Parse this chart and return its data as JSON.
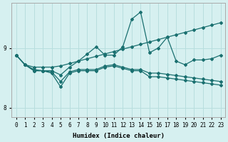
{
  "xlabel": "Humidex (Indice chaleur)",
  "bg_color": "#d6f0f0",
  "grid_color": "#b8dede",
  "line_color": "#1a7070",
  "xlim": [
    -0.5,
    23.5
  ],
  "ylim": [
    7.85,
    9.75
  ],
  "yticks": [
    8,
    9
  ],
  "xticks": [
    0,
    1,
    2,
    3,
    4,
    5,
    6,
    7,
    8,
    9,
    10,
    11,
    12,
    13,
    14,
    15,
    16,
    17,
    18,
    19,
    20,
    21,
    22,
    23
  ],
  "l1": [
    8.88,
    8.72,
    8.68,
    8.68,
    8.68,
    8.7,
    8.74,
    8.78,
    8.82,
    8.86,
    8.9,
    8.94,
    8.98,
    9.02,
    9.06,
    9.1,
    9.14,
    9.18,
    9.22,
    9.26,
    9.3,
    9.34,
    9.38,
    9.42
  ],
  "l2": [
    8.88,
    8.72,
    8.64,
    8.62,
    8.62,
    8.55,
    8.68,
    8.78,
    8.9,
    9.02,
    8.88,
    8.88,
    9.02,
    9.48,
    9.6,
    8.92,
    9.0,
    9.18,
    8.78,
    8.72,
    8.8,
    8.8,
    8.82,
    8.88
  ],
  "l3": [
    8.88,
    8.72,
    8.62,
    8.62,
    8.6,
    8.44,
    8.6,
    8.64,
    8.64,
    8.64,
    8.7,
    8.72,
    8.68,
    8.64,
    8.64,
    8.58,
    8.58,
    8.56,
    8.54,
    8.52,
    8.5,
    8.48,
    8.46,
    8.44
  ],
  "l4": [
    8.88,
    8.72,
    8.62,
    8.62,
    8.58,
    8.35,
    8.58,
    8.62,
    8.62,
    8.62,
    8.68,
    8.7,
    8.66,
    8.62,
    8.62,
    8.52,
    8.52,
    8.5,
    8.48,
    8.46,
    8.44,
    8.42,
    8.4,
    8.38
  ]
}
